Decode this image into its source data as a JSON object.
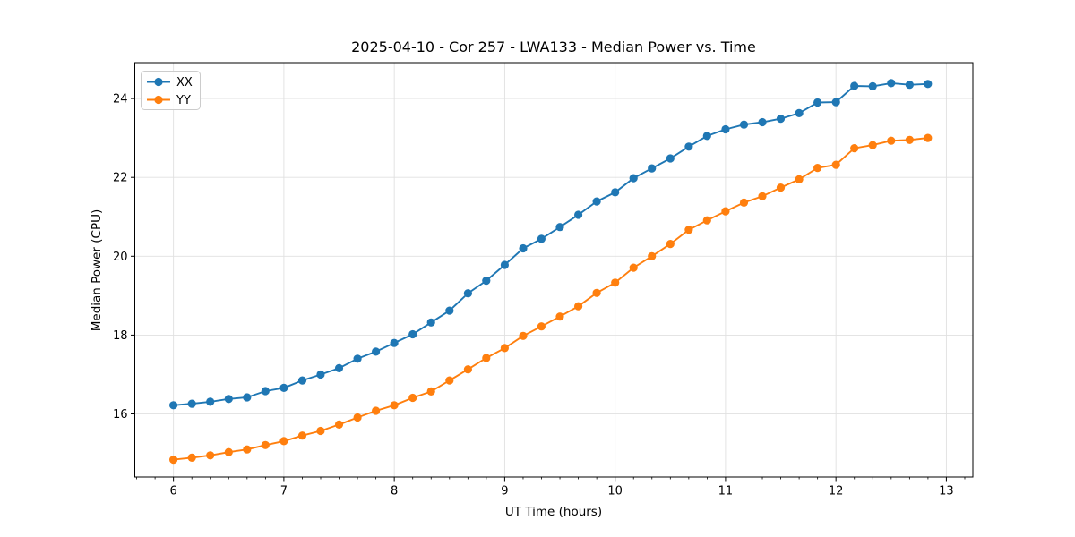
{
  "chart_data": {
    "type": "line",
    "title": "2025-04-10 - Cor 257 - LWA133 - Median Power vs. Time",
    "xlabel": "UT Time (hours)",
    "ylabel": "Median Power (CPU)",
    "xlim": [
      5.65,
      13.24
    ],
    "ylim": [
      14.4,
      24.91
    ],
    "x_ticks": [
      6,
      7,
      8,
      9,
      10,
      11,
      12,
      13
    ],
    "y_ticks": [
      16,
      18,
      20,
      22,
      24
    ],
    "x_minor_step": 0.16667,
    "grid": true,
    "grid_color": "#e0e0e0",
    "legend_position": "upper-left",
    "marker": "circle",
    "x": [
      6.0,
      6.167,
      6.333,
      6.5,
      6.667,
      6.833,
      7.0,
      7.167,
      7.333,
      7.5,
      7.667,
      7.833,
      8.0,
      8.167,
      8.333,
      8.5,
      8.667,
      8.833,
      9.0,
      9.167,
      9.333,
      9.5,
      9.667,
      9.833,
      10.0,
      10.167,
      10.333,
      10.5,
      10.667,
      10.833,
      11.0,
      11.167,
      11.333,
      11.5,
      11.667,
      11.833,
      12.0,
      12.167,
      12.333,
      12.5,
      12.667,
      12.833
    ],
    "series": [
      {
        "name": "XX",
        "color": "#1f77b4",
        "values": [
          16.22,
          16.26,
          16.31,
          16.38,
          16.42,
          16.58,
          16.66,
          16.85,
          17.0,
          17.16,
          17.4,
          17.58,
          17.8,
          18.02,
          18.32,
          18.62,
          19.06,
          19.38,
          19.78,
          20.2,
          20.44,
          20.74,
          21.05,
          21.39,
          21.62,
          21.98,
          22.23,
          22.48,
          22.78,
          23.05,
          23.22,
          23.34,
          23.4,
          23.49,
          23.63,
          23.9,
          23.91,
          24.32,
          24.31,
          24.39,
          24.35,
          24.37
        ]
      },
      {
        "name": "YY",
        "color": "#ff7f0e",
        "values": [
          14.84,
          14.89,
          14.95,
          15.03,
          15.1,
          15.21,
          15.31,
          15.45,
          15.57,
          15.73,
          15.91,
          16.08,
          16.22,
          16.41,
          16.57,
          16.85,
          17.13,
          17.42,
          17.67,
          17.98,
          18.22,
          18.47,
          18.73,
          19.07,
          19.33,
          19.71,
          20.0,
          20.31,
          20.67,
          20.91,
          21.14,
          21.36,
          21.52,
          21.74,
          21.95,
          22.24,
          22.32,
          22.74,
          22.82,
          22.93,
          22.95,
          23.0
        ]
      }
    ]
  }
}
